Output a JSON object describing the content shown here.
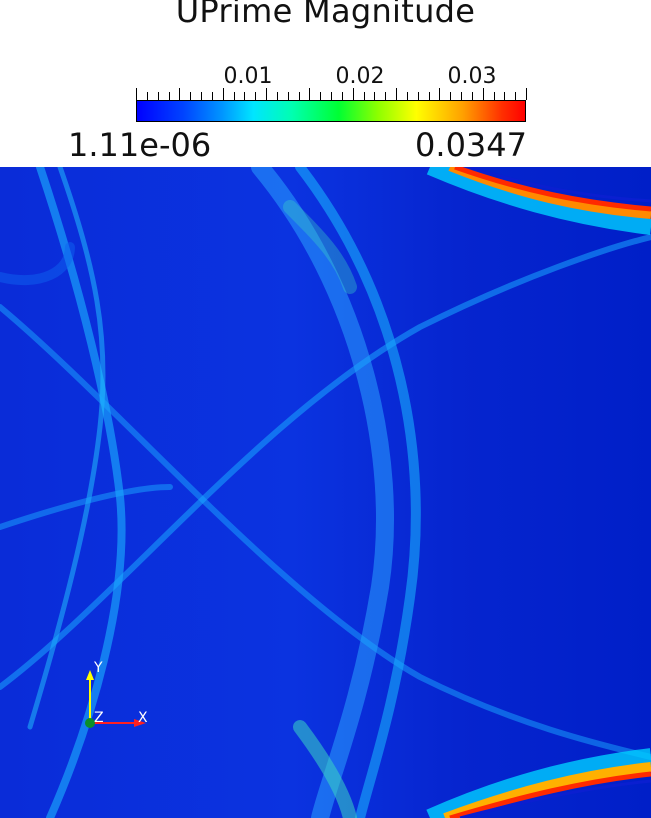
{
  "title": "UPrime Magnitude",
  "colorbar": {
    "tick_labels": [
      "0.01",
      "0.02",
      "0.03"
    ],
    "min_label": "1.11e-06",
    "max_label": "0.0347"
  },
  "axes": {
    "y_label": "Y",
    "z_label": "Z",
    "x_label": "X"
  }
}
